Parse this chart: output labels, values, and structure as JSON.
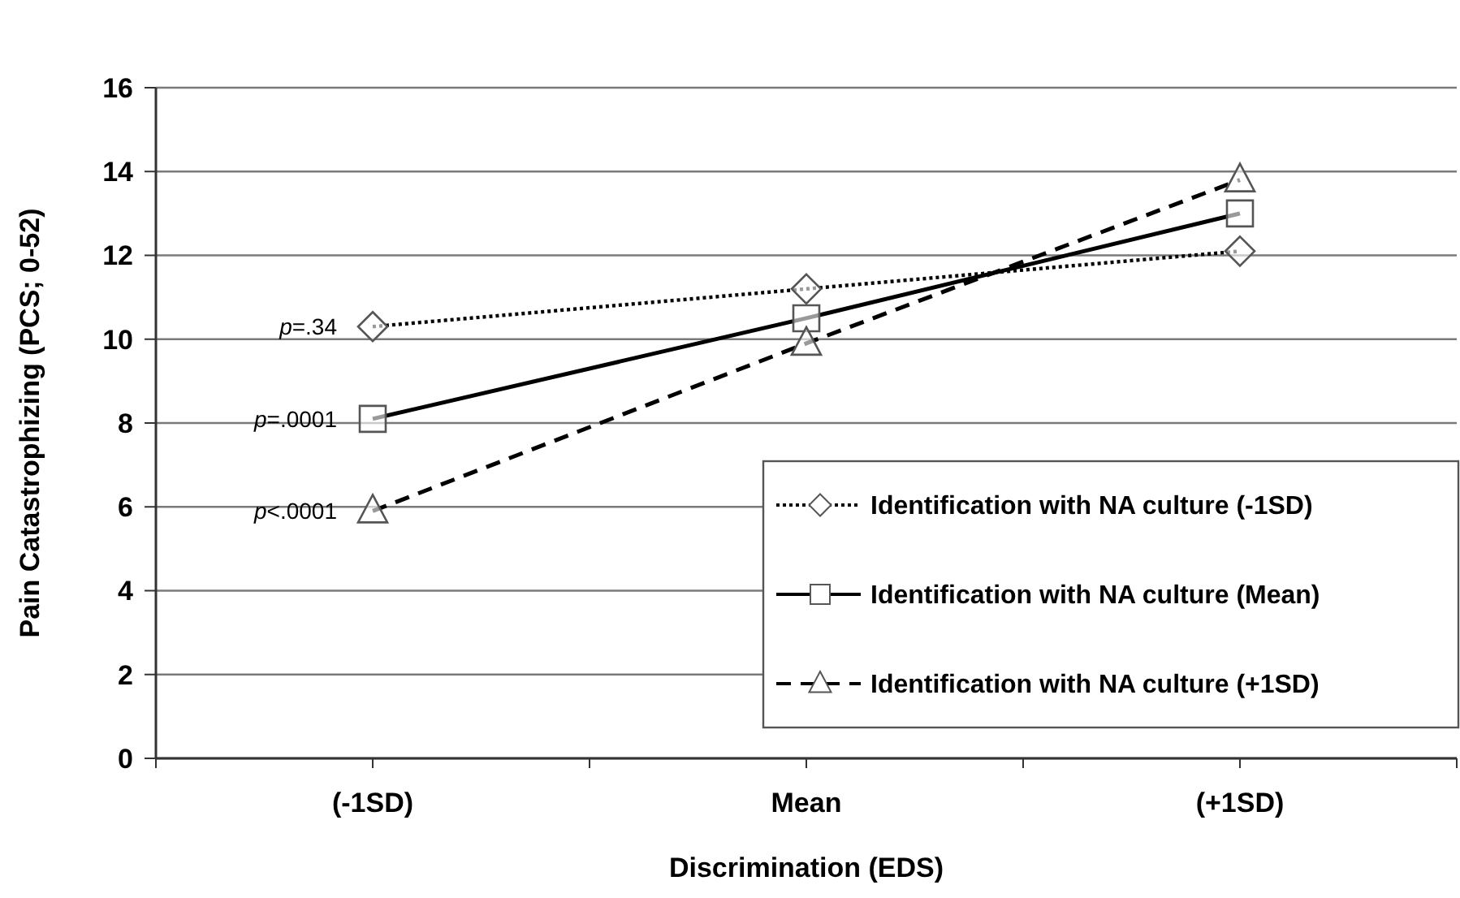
{
  "chart_data": {
    "type": "line",
    "xlabel": "Discrimination (EDS)",
    "ylabel": "Pain Catastrophizing (PCS; 0-52)",
    "categories": [
      "(-1SD)",
      "Mean",
      "(+1SD)"
    ],
    "ylim": [
      0,
      16
    ],
    "yticks": [
      0,
      2,
      4,
      6,
      8,
      10,
      12,
      14,
      16
    ],
    "grid": "y",
    "legend": "bottom right",
    "series": [
      {
        "name": "Identification with NA culture (-1SD)",
        "color": "#000000",
        "values": [
          10.3,
          11.2,
          12.1
        ],
        "marker": "diamond",
        "line_style": "dotted"
      },
      {
        "name": "Identification with NA culture (Mean)",
        "color": "#000000",
        "values": [
          8.1,
          10.5,
          13.0
        ],
        "marker": "square",
        "line_style": "solid"
      },
      {
        "name": "Identification with NA culture (+1SD)",
        "color": "#000000",
        "values": [
          5.9,
          9.9,
          13.8
        ],
        "marker": "triangle",
        "line_style": "dashed"
      }
    ],
    "annotations": [
      {
        "text": "p=.34",
        "x": "(-1SD)",
        "y": 10.3
      },
      {
        "text": "p=.0001",
        "x": "(-1SD)",
        "y": 8.1
      },
      {
        "text": "p<.0001",
        "x": "(-1SD)",
        "y": 5.9
      }
    ]
  }
}
